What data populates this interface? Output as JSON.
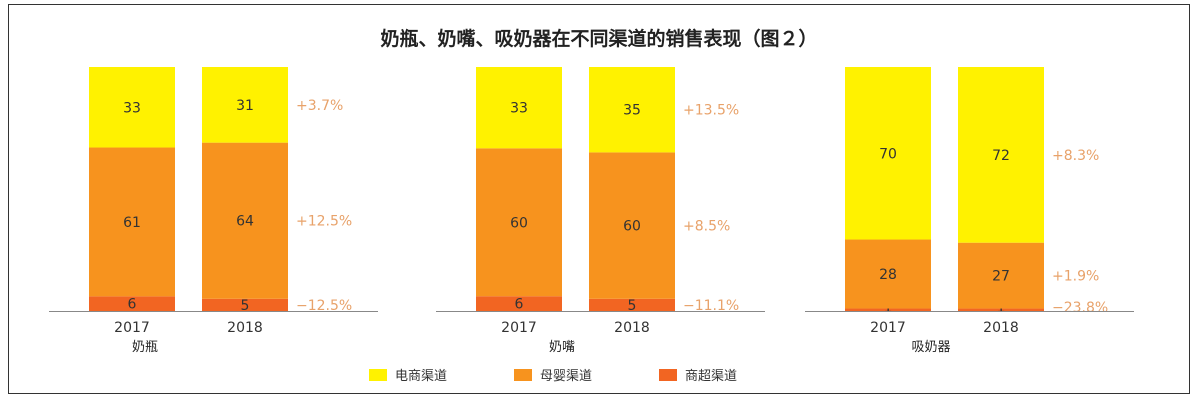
{
  "chart_data": {
    "type": "bar",
    "stacked": true,
    "normalized": true,
    "title": "奶瓶、奶嘴、吸奶器在不同渠道的销售表现（图２）",
    "colors": {
      "电商渠道": "#fff200",
      "母婴渠道": "#f7931e",
      "商超渠道": "#f26522"
    },
    "legend": {
      "position": "bottom",
      "items": [
        "电商渠道",
        "母婴渠道",
        "商超渠道"
      ]
    },
    "groups": [
      {
        "name": "奶瓶",
        "bars": [
          {
            "year": "2017",
            "segments": {
              "电商渠道": 33,
              "母婴渠道": 61,
              "商超渠道": 6
            }
          },
          {
            "year": "2018",
            "segments": {
              "电商渠道": 31,
              "母婴渠道": 64,
              "商超渠道": 5
            }
          }
        ],
        "changes": {
          "电商渠道": "+3.7%",
          "母婴渠道": "+12.5%",
          "商超渠道": "−12.5%"
        }
      },
      {
        "name": "奶嘴",
        "bars": [
          {
            "year": "2017",
            "segments": {
              "电商渠道": 33,
              "母婴渠道": 60,
              "商超渠道": 6
            }
          },
          {
            "year": "2018",
            "segments": {
              "电商渠道": 35,
              "母婴渠道": 60,
              "商超渠道": 5
            }
          }
        ],
        "changes": {
          "电商渠道": "+13.5%",
          "母婴渠道": "+8.5%",
          "商超渠道": "−11.1%"
        }
      },
      {
        "name": "吸奶器",
        "bars": [
          {
            "year": "2017",
            "segments": {
              "电商渠道": 70,
              "母婴渠道": 28,
              "商超渠道": 1
            }
          },
          {
            "year": "2018",
            "segments": {
              "电商渠道": 72,
              "母婴渠道": 27,
              "商超渠道": 1
            }
          }
        ],
        "changes": {
          "电商渠道": "+8.3%",
          "母婴渠道": "+1.9%",
          "商超渠道": "−23.8%"
        }
      }
    ]
  }
}
